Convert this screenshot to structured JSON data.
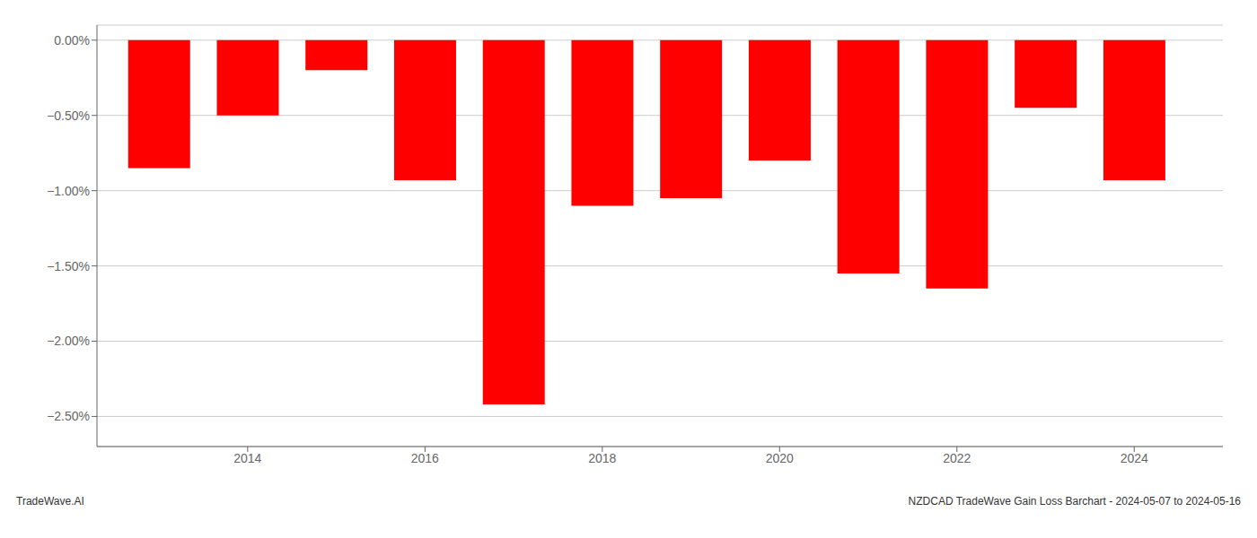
{
  "chart_data": {
    "type": "bar",
    "x": [
      2013,
      2014,
      2015,
      2016,
      2017,
      2018,
      2019,
      2020,
      2021,
      2022,
      2023,
      2024
    ],
    "values": [
      -0.0085,
      -0.005,
      -0.002,
      -0.0093,
      -0.0242,
      -0.011,
      -0.0105,
      -0.008,
      -0.0155,
      -0.0165,
      -0.0045,
      -0.0093
    ],
    "color": "#ff0000",
    "xlim": [
      2012.3,
      2025.0
    ],
    "xticks": [
      2014,
      2016,
      2018,
      2020,
      2022,
      2024
    ],
    "ylim": [
      -0.027,
      0.001
    ],
    "yticks": [
      {
        "value": 0.0,
        "label": "0.00%"
      },
      {
        "value": -0.005,
        "label": "−0.50%"
      },
      {
        "value": -0.01,
        "label": "−1.00%"
      },
      {
        "value": -0.015,
        "label": "−1.50%"
      },
      {
        "value": -0.02,
        "label": "−2.00%"
      },
      {
        "value": -0.025,
        "label": "−2.50%"
      }
    ],
    "grid": true,
    "annotations": [
      "TradeWave.AI",
      "NZDCAD TradeWave Gain Loss Barchart - 2024-05-07 to 2024-05-16"
    ]
  }
}
